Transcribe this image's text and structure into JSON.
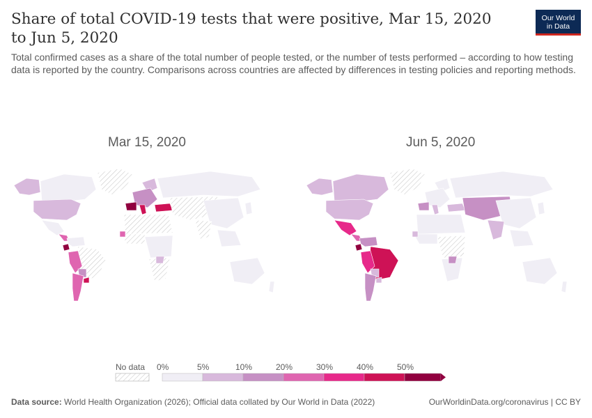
{
  "header": {
    "title": "Share of total COVID-19 tests that were positive, Mar 15, 2020 to Jun 5, 2020",
    "subtitle": "Total confirmed cases as a share of the total number of people tested, or the number of tests performed – according to how testing data is reported by the country. Comparisons across countries are affected by differences in testing policies and reporting methods."
  },
  "logo": {
    "line1": "Our World",
    "line2": "in Data"
  },
  "maps": [
    {
      "title": "Mar 15, 2020"
    },
    {
      "title": "Jun 5, 2020"
    }
  ],
  "legend": {
    "no_data_label": "No data",
    "bins": [
      {
        "label": "0%",
        "color": "#f0eef5"
      },
      {
        "label": "5%",
        "color": "#d8b9dc"
      },
      {
        "label": "10%",
        "color": "#c690c4"
      },
      {
        "label": "20%",
        "color": "#df65b0"
      },
      {
        "label": "30%",
        "color": "#e7298a"
      },
      {
        "label": "40%",
        "color": "#ce1256"
      },
      {
        "label": "50%",
        "color": "#91003f"
      }
    ]
  },
  "footer": {
    "source_label": "Data source:",
    "source_text": "World Health Organization (2026); Official data collated by Our World in Data (2022)",
    "url": "OurWorldinData.org/coronavirus | CC BY"
  }
}
